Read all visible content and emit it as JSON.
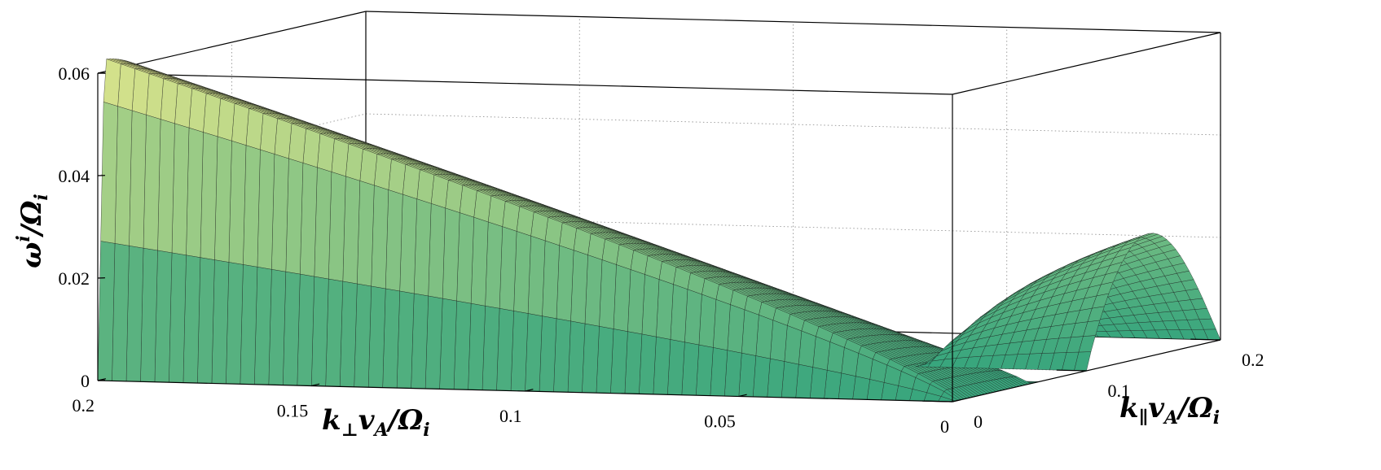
{
  "chart_data": {
    "type": "surface",
    "title": "",
    "zlabel": "ω^i/Ω_i",
    "xlabel": "k_⊥ v_A/Ω_i",
    "ylabel": "k_∥ v_A/Ω_i",
    "xlim": [
      0,
      0.2
    ],
    "ylim": [
      0,
      0.2
    ],
    "zlim": [
      0,
      0.06
    ],
    "x_ticks": [
      "0.2",
      "0.15",
      "0.1",
      "0.05",
      "0"
    ],
    "y_ticks": [
      "0",
      "0.1",
      "0.2"
    ],
    "z_ticks": [
      "0",
      "0.02",
      "0.04",
      "0.06"
    ],
    "grid": true,
    "surface": {
      "main_lobe": {
        "description_values": "growth rate rises with k_⊥, peaks near 0.062 at k_⊥=0.2 and small k_∥, decreasing to 0 by k_∥≈0.06",
        "samples": [
          {
            "k_perp": 0.2,
            "k_par": 0.0,
            "omega": 0.0
          },
          {
            "k_perp": 0.2,
            "k_par": 0.03,
            "omega": 0.063
          },
          {
            "k_perp": 0.1,
            "k_par": 0.03,
            "omega": 0.045
          },
          {
            "k_perp": 0.05,
            "k_par": 0.04,
            "omega": 0.025
          },
          {
            "k_perp": 0.0,
            "k_par": 0.06,
            "omega": 0.0
          }
        ]
      },
      "secondary_lobe": {
        "samples": [
          {
            "k_perp": 0.0,
            "k_par": 0.1,
            "omega": 0.0
          },
          {
            "k_perp": 0.0,
            "k_par": 0.15,
            "omega": 0.022
          },
          {
            "k_perp": 0.0,
            "k_par": 0.2,
            "omega": 0.0
          }
        ]
      }
    }
  }
}
